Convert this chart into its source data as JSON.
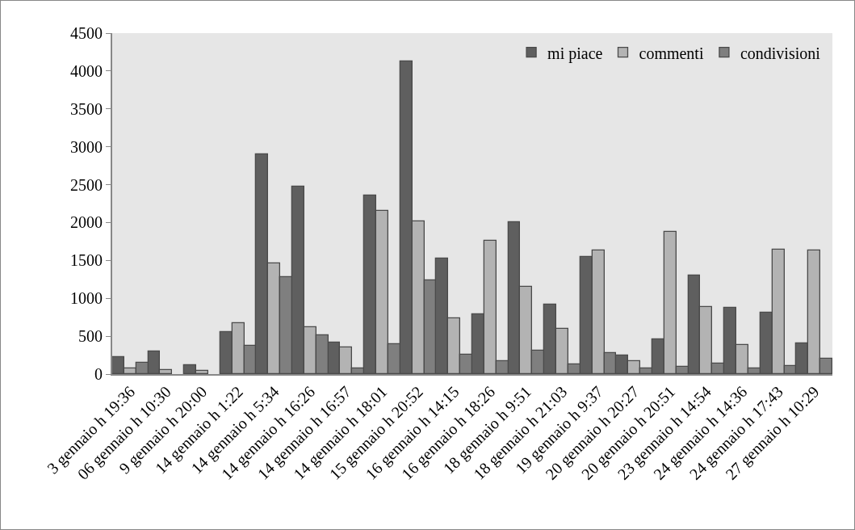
{
  "chart_data": {
    "type": "bar",
    "categories": [
      "3 gennaio h 19:36",
      "06 gennaio h 10:30",
      "9 gennaio h 20:00",
      "14 gennaio h 1:22",
      "14 gennaio h 5:34",
      "14 gennaio h 16:26",
      "14 gennaio h 16:57",
      "14 gennaio h 18:01",
      "15 gennaio h 20:52",
      "16 gennaio h 14:15",
      "16 gennaio h 18:26",
      "18 gennaio h 9:51",
      "18 gennaio h 21:03",
      "19 gennaio h 9:37",
      "20 gennaio h 20:27",
      "20 gennaio h 20:51",
      "23 gennaio h 14:54",
      "24 gennaio h 14:36",
      "24 gennaio h 17:43",
      "27 gennaio h 10:29"
    ],
    "series": [
      {
        "name": "mi piace",
        "color": "#5f5f5f",
        "values": [
          220,
          300,
          120,
          550,
          2900,
          2470,
          420,
          2360,
          4130,
          1520,
          790,
          2010,
          920,
          1550,
          250,
          460,
          1300,
          870,
          810,
          410
        ]
      },
      {
        "name": "commenti",
        "color": "#b3b3b3",
        "values": [
          80,
          50,
          40,
          670,
          1460,
          620,
          350,
          2150,
          2020,
          740,
          1760,
          1150,
          600,
          1630,
          170,
          1880,
          890,
          380,
          1640,
          1630
        ]
      },
      {
        "name": "condivisioni",
        "color": "#7f7f7f",
        "values": [
          150,
          0,
          0,
          370,
          1280,
          510,
          70,
          390,
          1240,
          260,
          170,
          310,
          130,
          280,
          80,
          100,
          140,
          80,
          110,
          200
        ]
      }
    ],
    "ylim": [
      0,
      4500
    ],
    "yticks": [
      0,
      500,
      1000,
      1500,
      2000,
      2500,
      3000,
      3500,
      4000,
      4500
    ],
    "grid": false,
    "legend": "top right"
  }
}
